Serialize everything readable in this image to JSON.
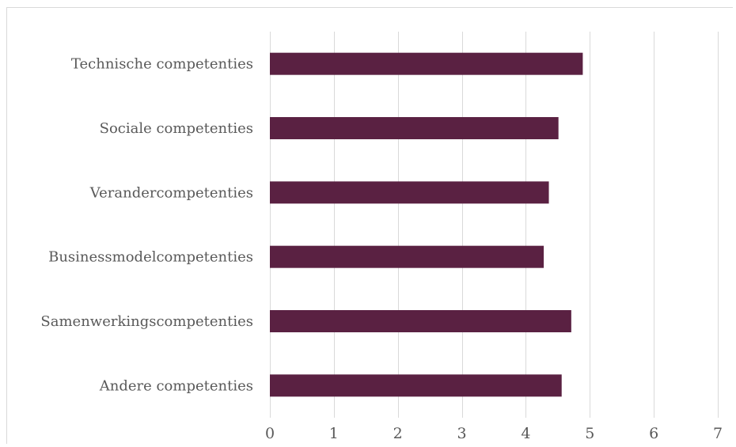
{
  "chart_data": {
    "type": "bar",
    "orientation": "horizontal",
    "title": "",
    "xlabel": "",
    "ylabel": "",
    "categories": [
      "Technische competenties",
      "Sociale competenties",
      "Verandercompetenties",
      "Businessmodelcompetenties",
      "Samenwerkingscompetenties",
      "Andere competenties"
    ],
    "values": [
      4.89,
      4.51,
      4.36,
      4.28,
      4.71,
      4.56
    ],
    "xlim": [
      0,
      7
    ],
    "xticks": [
      "0",
      "1",
      "2",
      "3",
      "4",
      "5",
      "6",
      "7"
    ],
    "grid": true,
    "legend": "none",
    "colors": {
      "bar": "#5a2142",
      "grid": "#d9d9d9",
      "text": "#595959"
    }
  }
}
